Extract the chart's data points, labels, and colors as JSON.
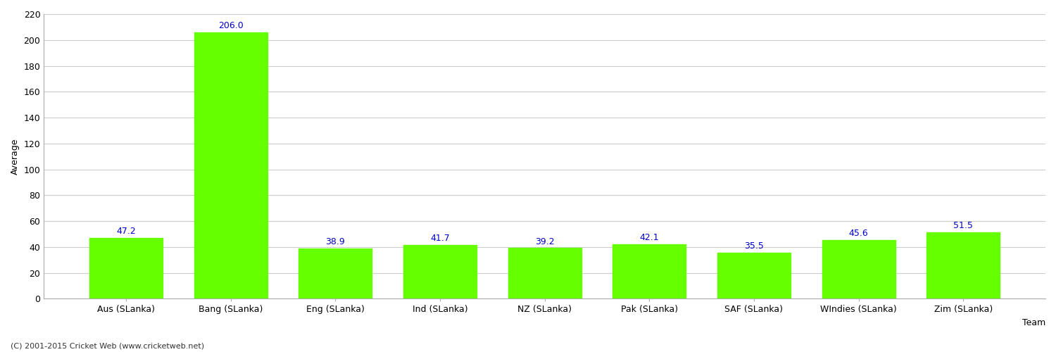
{
  "categories": [
    "Aus (SLanka)",
    "Bang (SLanka)",
    "Eng (SLanka)",
    "Ind (SLanka)",
    "NZ (SLanka)",
    "Pak (SLanka)",
    "SAF (SLanka)",
    "WIndies (SLanka)",
    "Zim (SLanka)"
  ],
  "values": [
    47.2,
    206.0,
    38.9,
    41.7,
    39.2,
    42.1,
    35.5,
    45.6,
    51.5
  ],
  "bar_color": "#66ff00",
  "bar_edge_color": "#66ff00",
  "label_color": "#0000cc",
  "ylabel": "Average",
  "xlabel": "Team",
  "ylim": [
    0,
    220
  ],
  "yticks": [
    0,
    20,
    40,
    60,
    80,
    100,
    120,
    140,
    160,
    180,
    200,
    220
  ],
  "background_color": "#ffffff",
  "grid_color": "#cccccc",
  "footer": "(C) 2001-2015 Cricket Web (www.cricketweb.net)",
  "value_fontsize": 9,
  "axis_tick_fontsize": 9,
  "xlabel_fontsize": 9,
  "ylabel_fontsize": 9,
  "footer_fontsize": 8,
  "bar_width": 0.7
}
